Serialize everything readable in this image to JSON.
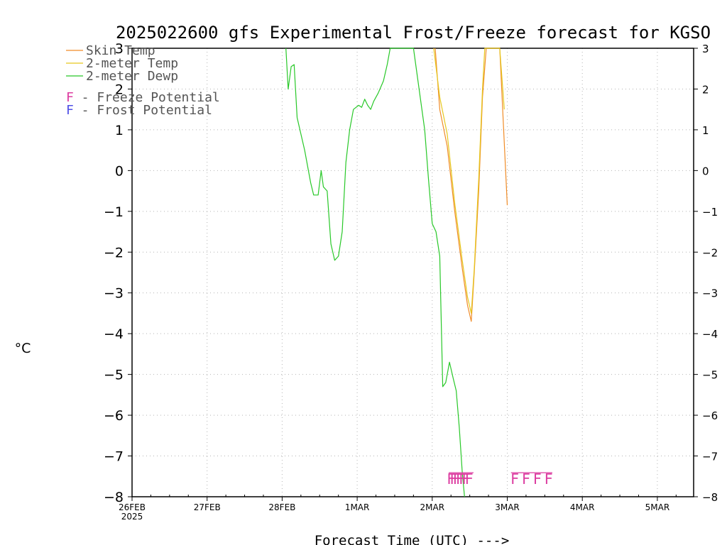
{
  "chart_data": {
    "type": "line",
    "title": "2025022600 gfs Experimental Frost/Freeze forecast for KGSO",
    "xlabel": "Forecast Time (UTC) --->",
    "ylabel": "°C",
    "ylim": [
      -8,
      3
    ],
    "yticks": [
      3,
      2,
      1,
      0,
      -1,
      -2,
      -3,
      -4,
      -5,
      -6,
      -7,
      -8
    ],
    "yticklabels": [
      "3",
      "2",
      "1",
      "0",
      "−1",
      "−2",
      "−3",
      "−4",
      "−5",
      "−6",
      "−7",
      "−8"
    ],
    "xlim_days": [
      0,
      7.5
    ],
    "xticks": [
      {
        "day": 0,
        "label": "26FEB",
        "sublabel": "2025"
      },
      {
        "day": 1,
        "label": "27FEB"
      },
      {
        "day": 2,
        "label": "28FEB"
      },
      {
        "day": 3,
        "label": "1MAR"
      },
      {
        "day": 4,
        "label": "2MAR"
      },
      {
        "day": 5,
        "label": "3MAR"
      },
      {
        "day": 6,
        "label": "4MAR"
      },
      {
        "day": 7,
        "label": "5MAR"
      }
    ],
    "grid": true,
    "legend": "top-left",
    "series": [
      {
        "name": "Skin Temp",
        "color": "#f08c28",
        "points": [
          [
            4.04,
            3
          ],
          [
            4.1,
            1.5
          ],
          [
            4.2,
            0.6
          ],
          [
            4.3,
            -1.0
          ],
          [
            4.4,
            -2.4
          ],
          [
            4.47,
            -3.3
          ],
          [
            4.52,
            -3.7
          ],
          [
            4.56,
            -2.5
          ],
          [
            4.62,
            -0.5
          ],
          [
            4.67,
            1.8
          ],
          [
            4.72,
            3
          ],
          [
            4.9,
            3
          ],
          [
            5.0,
            -0.85
          ]
        ]
      },
      {
        "name": "2-meter Temp",
        "color": "#e6c81e",
        "points": [
          [
            4.02,
            3
          ],
          [
            4.1,
            1.8
          ],
          [
            4.2,
            0.9
          ],
          [
            4.3,
            -0.8
          ],
          [
            4.4,
            -2.2
          ],
          [
            4.47,
            -3.1
          ],
          [
            4.52,
            -3.5
          ],
          [
            4.56,
            -2.4
          ],
          [
            4.62,
            -0.2
          ],
          [
            4.67,
            2.0
          ],
          [
            4.7,
            3
          ],
          [
            4.9,
            3
          ],
          [
            4.96,
            1.5
          ]
        ]
      },
      {
        "name": "2-meter Dewp",
        "color": "#28c828",
        "points": [
          [
            2.05,
            3
          ],
          [
            2.08,
            2.0
          ],
          [
            2.12,
            2.55
          ],
          [
            2.16,
            2.6
          ],
          [
            2.2,
            1.3
          ],
          [
            2.3,
            0.5
          ],
          [
            2.38,
            -0.3
          ],
          [
            2.42,
            -0.6
          ],
          [
            2.48,
            -0.6
          ],
          [
            2.52,
            0
          ],
          [
            2.55,
            -0.4
          ],
          [
            2.6,
            -0.5
          ],
          [
            2.65,
            -1.8
          ],
          [
            2.7,
            -2.2
          ],
          [
            2.75,
            -2.1
          ],
          [
            2.8,
            -1.5
          ],
          [
            2.85,
            0.2
          ],
          [
            2.9,
            1.0
          ],
          [
            2.95,
            1.5
          ],
          [
            3.02,
            1.6
          ],
          [
            3.06,
            1.55
          ],
          [
            3.1,
            1.75
          ],
          [
            3.14,
            1.6
          ],
          [
            3.18,
            1.5
          ],
          [
            3.22,
            1.7
          ],
          [
            3.28,
            1.9
          ],
          [
            3.35,
            2.2
          ],
          [
            3.4,
            2.6
          ],
          [
            3.44,
            3
          ],
          [
            3.75,
            3
          ],
          [
            3.9,
            1.0
          ],
          [
            3.95,
            -0.2
          ],
          [
            4.0,
            -1.3
          ],
          [
            4.05,
            -1.5
          ],
          [
            4.1,
            -2.1
          ],
          [
            4.14,
            -5.3
          ],
          [
            4.18,
            -5.2
          ],
          [
            4.23,
            -4.7
          ],
          [
            4.28,
            -5.1
          ],
          [
            4.32,
            -5.4
          ],
          [
            4.36,
            -6.3
          ],
          [
            4.4,
            -7.4
          ],
          [
            4.43,
            -8
          ]
        ]
      }
    ],
    "freeze_markers": {
      "color": "#dc3ca0",
      "y": -7.55,
      "days": [
        4.25,
        4.29,
        4.33,
        4.37,
        4.41,
        4.45,
        4.49,
        5.1,
        5.25,
        5.4,
        5.55
      ]
    },
    "frost_markers": {
      "color": "#5050e6",
      "days": []
    },
    "legend_items": [
      {
        "label": "Skin Temp",
        "color": "#f08c28"
      },
      {
        "label": "2-meter Temp",
        "color": "#e6c81e"
      },
      {
        "label": "2-meter Dewp",
        "color": "#28c828"
      }
    ],
    "marker_legend": [
      {
        "glyph": "F",
        "text": " - Freeze Potential",
        "color": "#dc3ca0"
      },
      {
        "glyph": "F",
        "text": " - Frost Potential",
        "color": "#5050e6"
      }
    ]
  }
}
